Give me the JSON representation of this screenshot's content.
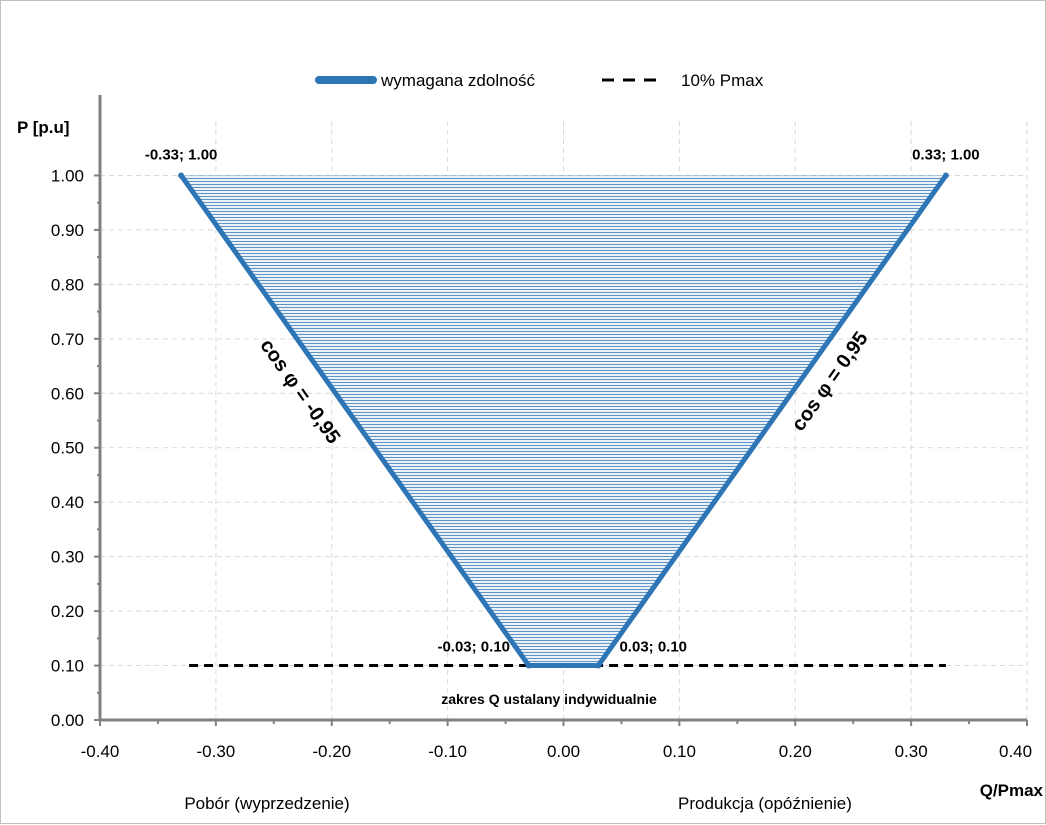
{
  "chart_data": {
    "type": "area",
    "title": "",
    "xlabel": "Q/Pmax",
    "ylabel": "P [p.u]",
    "xlim": [
      -0.4,
      0.4
    ],
    "ylim": [
      0,
      1.1
    ],
    "x_ticks": [
      "-0.40",
      "-0.30",
      "-0.20",
      "-0.10",
      "0.00",
      "0.10",
      "0.20",
      "0.30",
      "0.40"
    ],
    "y_ticks": [
      "0.00",
      "0.10",
      "0.20",
      "0.30",
      "0.40",
      "0.50",
      "0.60",
      "0.70",
      "0.80",
      "0.90",
      "1.00"
    ],
    "grid": true,
    "legend_position": "top-center",
    "series": [
      {
        "name": "wymagana zdolność",
        "style": "solid-thick",
        "color": "#2e75b6",
        "fill": "horizontal-hatch",
        "x": [
          -0.33,
          -0.03,
          0.03,
          0.33
        ],
        "y": [
          1.0,
          0.1,
          0.1,
          1.0
        ]
      },
      {
        "name": "10% Pmax",
        "style": "dashed",
        "color": "#000000",
        "x": [
          -0.33,
          0.33
        ],
        "y": [
          0.1,
          0.1
        ]
      }
    ],
    "point_labels": [
      {
        "text": "-0.33; 1.00",
        "x": -0.33,
        "y": 1.0
      },
      {
        "text": "0.33; 1.00",
        "x": 0.33,
        "y": 1.0
      },
      {
        "text": "-0.03; 0.10",
        "x": -0.03,
        "y": 0.1
      },
      {
        "text": "0.03; 0.10",
        "x": 0.03,
        "y": 0.1
      }
    ],
    "annotations": {
      "left_slope": "cos φ = -0,95",
      "right_slope": "cos φ = 0,95",
      "q_range": "zakres Q ustalany indywidualnie",
      "left_region": "Pobór (wyprzedzenie)",
      "right_region": "Produkcja (opóźnienie)"
    }
  }
}
